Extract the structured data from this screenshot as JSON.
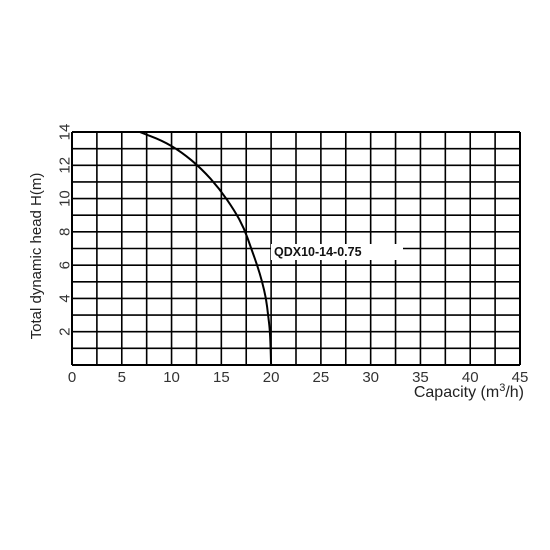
{
  "chart_data": {
    "type": "line",
    "title": "",
    "xlabel": "Capacity (m",
    "xlabel_sup": "3",
    "xlabel_end": "/h)",
    "ylabel": "Total dynamic head H(m)",
    "xlim": [
      0,
      45
    ],
    "ylim": [
      0,
      14
    ],
    "grid": true,
    "x_ticks": [
      "0",
      "5",
      "10",
      "15",
      "20",
      "25",
      "30",
      "35",
      "40",
      "45"
    ],
    "y_ticks": [
      "2",
      "4",
      "6",
      "8",
      "10",
      "12",
      "14"
    ],
    "series": [
      {
        "name": "QDX10-14-0.75",
        "x": [
          6.8,
          9.0,
          11.0,
          13.0,
          14.8,
          16.3,
          17.3,
          18.0,
          18.6,
          19.1,
          19.5,
          19.7,
          19.9,
          20.0
        ],
        "y": [
          14.0,
          13.5,
          12.8,
          11.8,
          10.6,
          9.3,
          8.2,
          7.0,
          6.0,
          5.0,
          4.0,
          3.0,
          2.0,
          0.0
        ]
      }
    ]
  }
}
